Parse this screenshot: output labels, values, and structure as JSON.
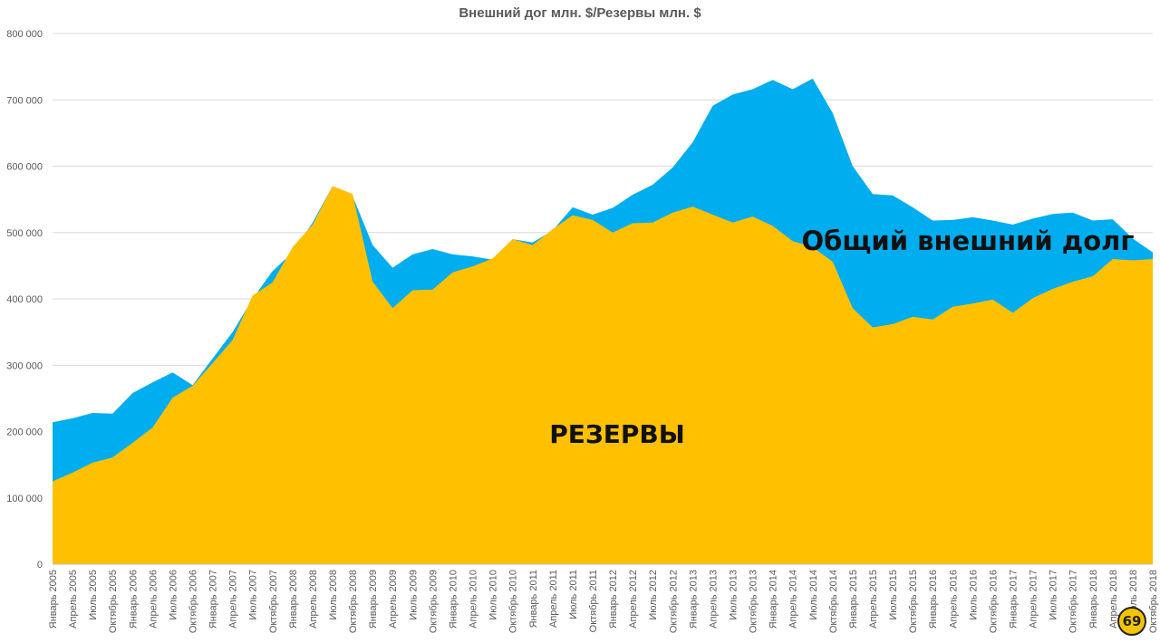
{
  "chart_data": {
    "type": "area",
    "title": "Внешний дог млн. $/Резервы млн. $",
    "xlabel": "",
    "ylabel": "",
    "ylim": [
      0,
      800000
    ],
    "yticks": [
      "0",
      "100 000",
      "200 000",
      "300 000",
      "400 000",
      "500 000",
      "600 000",
      "700 000",
      "800 000"
    ],
    "grid": true,
    "categories": [
      "Январь 2005",
      "Апрель 2005",
      "Июль 2005",
      "Октябрь 2005",
      "Январь 2006",
      "Апрель 2006",
      "Июль 2006",
      "Октябрь 2006",
      "Январь 2007",
      "Апрель 2007",
      "Июль 2007",
      "Октябрь 2007",
      "Январь 2008",
      "Апрель 2008",
      "Июль 2008",
      "Октябрь 2008",
      "Январь 2009",
      "Апрель 2009",
      "Июль 2009",
      "Октябрь 2009",
      "Январь 2010",
      "Апрель 2010",
      "Июль 2010",
      "Октябрь 2010",
      "Январь 2011",
      "Апрель 2011",
      "Июль 2011",
      "Октябрь 2011",
      "Январь 2012",
      "Апрель 2012",
      "Июль 2012",
      "Октябрь 2012",
      "Январь 2013",
      "Апрель 2013",
      "Июль 2013",
      "Октябрь 2013",
      "Январь 2014",
      "Апрель 2014",
      "Июль 2014",
      "Октябрь 2014",
      "Январь 2015",
      "Апрель 2015",
      "Июль 2015",
      "Октябрь 2015",
      "Январь 2016",
      "Апрель 2016",
      "Июль 2016",
      "Октябрь 2016",
      "Январь 2017",
      "Апрель 2017",
      "Июль 2017",
      "Октябрь 2017",
      "Январь 2018",
      "Апрель 2018",
      "Июль 2018",
      "Октябрь 2018"
    ],
    "series": [
      {
        "name": "Общий внешний долг",
        "color": "#00adee",
        "values": [
          214000,
          220000,
          228000,
          227000,
          258000,
          274000,
          289000,
          270000,
          310000,
          350000,
          400000,
          442000,
          470000,
          515000,
          570000,
          555000,
          481000,
          447000,
          467000,
          475000,
          467000,
          464000,
          459000,
          490000,
          485000,
          503000,
          538000,
          527000,
          537000,
          557000,
          572000,
          598000,
          636000,
          691000,
          708000,
          716000,
          730000,
          716000,
          732000,
          680000,
          600000,
          558000,
          556000,
          538000,
          518000,
          519000,
          523000,
          518000,
          512000,
          521000,
          528000,
          530000,
          518000,
          520000,
          491000,
          470000
        ]
      },
      {
        "name": "РЕЗЕРВЫ",
        "color": "#ffc000",
        "values": [
          125000,
          138000,
          153000,
          161000,
          183000,
          206000,
          251000,
          269000,
          303000,
          338000,
          405000,
          425000,
          478000,
          512000,
          570000,
          558000,
          426000,
          386000,
          413000,
          414000,
          440000,
          449000,
          461000,
          490000,
          481000,
          505000,
          526000,
          519000,
          500000,
          514000,
          515000,
          530000,
          539000,
          527000,
          515000,
          524000,
          510000,
          487000,
          478000,
          456000,
          386000,
          357000,
          362000,
          373000,
          369000,
          388000,
          393000,
          399000,
          379000,
          401000,
          415000,
          426000,
          434000,
          460000,
          458000,
          460000
        ]
      }
    ],
    "annotations": [
      {
        "text": "Общий внешний долг",
        "series": "Общий внешний долг"
      },
      {
        "text": "РЕЗЕРВЫ",
        "series": "РЕЗЕРВЫ"
      }
    ]
  },
  "logo": {
    "text": "69"
  }
}
